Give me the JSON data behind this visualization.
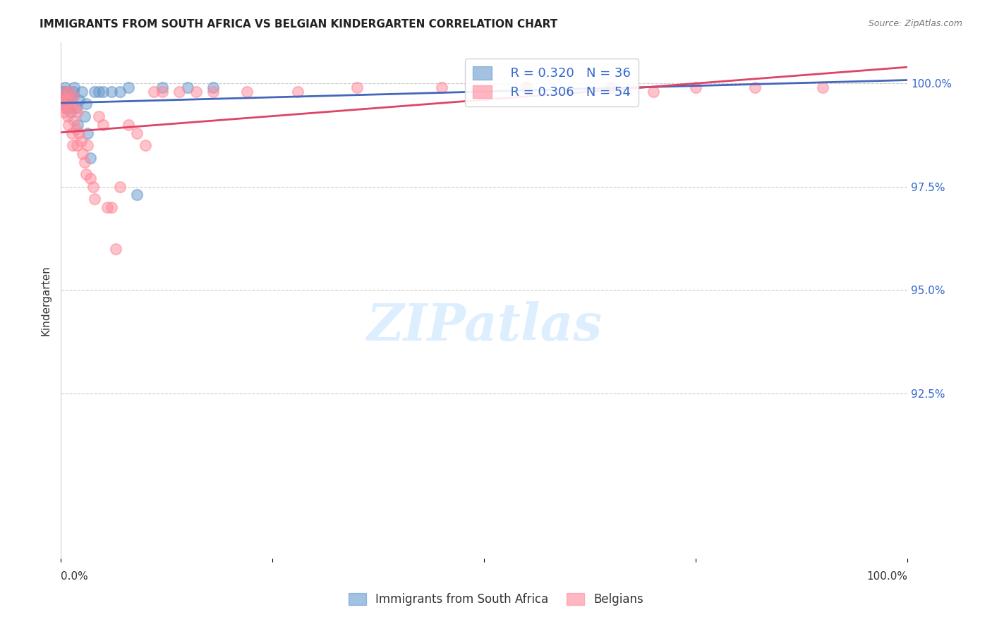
{
  "title": "IMMIGRANTS FROM SOUTH AFRICA VS BELGIAN KINDERGARTEN CORRELATION CHART",
  "source": "Source: ZipAtlas.com",
  "ylabel": "Kindergarten",
  "ytick_labels": [
    "100.0%",
    "97.5%",
    "95.0%",
    "92.5%"
  ],
  "ytick_values": [
    1.0,
    0.975,
    0.95,
    0.925
  ],
  "xlim": [
    0.0,
    1.0
  ],
  "ylim": [
    0.885,
    1.01
  ],
  "legend_label1": "Immigrants from South Africa",
  "legend_label2": "Belgians",
  "r1": 0.32,
  "n1": 36,
  "r2": 0.306,
  "n2": 54,
  "color_blue": "#6699CC",
  "color_pink": "#FF8899",
  "color_blue_line": "#4466BB",
  "color_pink_line": "#DD4466",
  "color_label": "#3366CC",
  "background": "#FFFFFF",
  "watermark_color": "#DDEEFF",
  "blue_points_x": [
    0.0,
    0.002,
    0.003,
    0.003,
    0.004,
    0.005,
    0.005,
    0.006,
    0.007,
    0.008,
    0.01,
    0.01,
    0.012,
    0.015,
    0.015,
    0.016,
    0.018,
    0.02,
    0.022,
    0.025,
    0.028,
    0.03,
    0.032,
    0.035,
    0.04,
    0.045,
    0.05,
    0.06,
    0.07,
    0.08,
    0.09,
    0.12,
    0.15,
    0.18,
    0.55,
    0.65
  ],
  "blue_points_y": [
    0.995,
    0.998,
    0.997,
    0.996,
    0.998,
    0.999,
    0.997,
    0.998,
    0.996,
    0.994,
    0.998,
    0.997,
    0.993,
    0.998,
    0.997,
    0.999,
    0.994,
    0.99,
    0.996,
    0.998,
    0.992,
    0.995,
    0.988,
    0.982,
    0.998,
    0.998,
    0.998,
    0.998,
    0.998,
    0.999,
    0.973,
    0.999,
    0.999,
    0.999,
    0.999,
    0.999
  ],
  "pink_points_x": [
    0.0,
    0.001,
    0.002,
    0.003,
    0.004,
    0.005,
    0.006,
    0.007,
    0.008,
    0.009,
    0.01,
    0.011,
    0.012,
    0.013,
    0.014,
    0.015,
    0.016,
    0.017,
    0.018,
    0.019,
    0.02,
    0.022,
    0.024,
    0.026,
    0.028,
    0.03,
    0.032,
    0.035,
    0.038,
    0.04,
    0.045,
    0.05,
    0.055,
    0.06,
    0.065,
    0.07,
    0.08,
    0.09,
    0.1,
    0.11,
    0.12,
    0.14,
    0.16,
    0.18,
    0.22,
    0.28,
    0.35,
    0.45,
    0.55,
    0.65,
    0.7,
    0.75,
    0.82,
    0.9
  ],
  "pink_points_y": [
    0.994,
    0.996,
    0.997,
    0.995,
    0.993,
    0.998,
    0.996,
    0.994,
    0.992,
    0.99,
    0.998,
    0.996,
    0.994,
    0.988,
    0.985,
    0.997,
    0.991,
    0.994,
    0.989,
    0.985,
    0.993,
    0.988,
    0.986,
    0.983,
    0.981,
    0.978,
    0.985,
    0.977,
    0.975,
    0.972,
    0.992,
    0.99,
    0.97,
    0.97,
    0.96,
    0.975,
    0.99,
    0.988,
    0.985,
    0.998,
    0.998,
    0.998,
    0.998,
    0.998,
    0.998,
    0.998,
    0.999,
    0.999,
    0.999,
    0.999,
    0.998,
    0.999,
    0.999,
    0.999
  ]
}
